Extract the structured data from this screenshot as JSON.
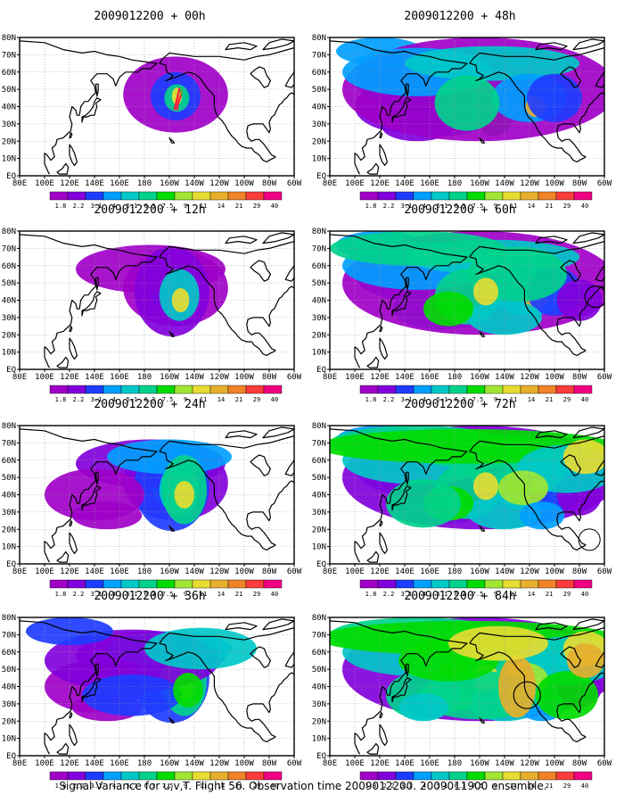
{
  "figure": {
    "caption": "Signal Variance for u,v,T. Flight 56. Observation time 2009012200. 2009011900 ensemble."
  },
  "panels": [
    {
      "id": "p00",
      "title": "2009012200 + 00h",
      "spread": 0.0
    },
    {
      "id": "p12",
      "title": "2009012200 + 12h",
      "spread": 0.2
    },
    {
      "id": "p24",
      "title": "2009012200 + 24h",
      "spread": 0.4
    },
    {
      "id": "p36",
      "title": "2009012200 + 36h",
      "spread": 0.55
    },
    {
      "id": "p48",
      "title": "2009012200 + 48h",
      "spread": 0.75
    },
    {
      "id": "p60",
      "title": "2009012200 + 60h",
      "spread": 0.85
    },
    {
      "id": "p72",
      "title": "2009012200 + 72h",
      "spread": 0.95
    },
    {
      "id": "p84",
      "title": "2009012200 + 84h",
      "spread": 1.0
    }
  ],
  "axes": {
    "lon_ticks": [
      "80E",
      "100E",
      "120E",
      "140E",
      "160E",
      "180",
      "160W",
      "140W",
      "120W",
      "100W",
      "80W",
      "60W"
    ],
    "lat_ticks": [
      "EQ",
      "10N",
      "20N",
      "30N",
      "40N",
      "50N",
      "60N",
      "70N",
      "80N"
    ]
  },
  "colorbar": {
    "labels": [
      "1.8",
      "2.2",
      "3.1",
      "4",
      "5.1",
      "6.3",
      "7.5",
      "9",
      "11",
      "14",
      "21",
      "29",
      "40"
    ],
    "colors": [
      "#a000c8",
      "#8200dc",
      "#1e3cff",
      "#00a0ff",
      "#00c8c8",
      "#00d28c",
      "#00dc00",
      "#a0e632",
      "#e6dc32",
      "#e6af2d",
      "#f08228",
      "#fa3c3c",
      "#f00082"
    ]
  },
  "colors": {
    "coastline": "#000000",
    "grid": "#9a9a9a",
    "track": "#ff1a3c",
    "track_inner": "#30c030"
  }
}
